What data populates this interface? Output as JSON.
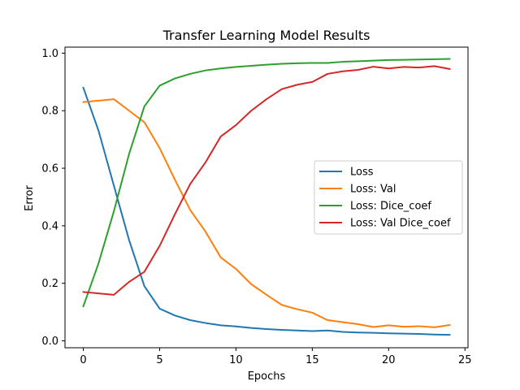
{
  "chart_data": {
    "type": "line",
    "title": "Transfer Learning Model Results",
    "xlabel": "Epochs",
    "ylabel": "Error",
    "xlim": [
      -1.2,
      25.2
    ],
    "ylim": [
      -0.024,
      1.021
    ],
    "xticks": [
      0,
      5,
      10,
      15,
      20,
      25
    ],
    "yticks": [
      0.0,
      0.2,
      0.4,
      0.6,
      0.8,
      1.0
    ],
    "xtick_labels": [
      "0",
      "5",
      "10",
      "15",
      "20",
      "25"
    ],
    "ytick_labels": [
      "0.0",
      "0.2",
      "0.4",
      "0.6",
      "0.8",
      "1.0"
    ],
    "grid": false,
    "legend_position": "center-right",
    "x": [
      0,
      1,
      2,
      3,
      4,
      5,
      6,
      7,
      8,
      9,
      10,
      11,
      12,
      13,
      14,
      15,
      16,
      17,
      18,
      19,
      20,
      21,
      22,
      23,
      24
    ],
    "series": [
      {
        "name": "Loss",
        "color": "#1f77b4",
        "values": [
          0.88,
          0.73,
          0.54,
          0.35,
          0.19,
          0.112,
          0.088,
          0.072,
          0.062,
          0.054,
          0.05,
          0.045,
          0.041,
          0.038,
          0.036,
          0.034,
          0.036,
          0.031,
          0.029,
          0.028,
          0.026,
          0.025,
          0.024,
          0.022,
          0.021
        ]
      },
      {
        "name": "Loss: Val",
        "color": "#ff7f0e",
        "values": [
          0.83,
          0.835,
          0.84,
          0.8,
          0.76,
          0.67,
          0.56,
          0.455,
          0.38,
          0.29,
          0.25,
          0.197,
          0.16,
          0.125,
          0.11,
          0.098,
          0.072,
          0.065,
          0.058,
          0.048,
          0.054,
          0.049,
          0.051,
          0.047,
          0.055
        ]
      },
      {
        "name": "Loss: Dice_coef",
        "color": "#2ca02c",
        "values": [
          0.12,
          0.27,
          0.45,
          0.65,
          0.815,
          0.887,
          0.912,
          0.928,
          0.94,
          0.947,
          0.952,
          0.956,
          0.96,
          0.963,
          0.965,
          0.966,
          0.966,
          0.97,
          0.972,
          0.974,
          0.976,
          0.977,
          0.978,
          0.979,
          0.98
        ]
      },
      {
        "name": "Loss: Val Dice_coef",
        "color": "#d62728",
        "values": [
          0.17,
          0.165,
          0.16,
          0.205,
          0.24,
          0.33,
          0.44,
          0.545,
          0.62,
          0.71,
          0.75,
          0.8,
          0.84,
          0.875,
          0.89,
          0.9,
          0.928,
          0.937,
          0.942,
          0.953,
          0.947,
          0.952,
          0.95,
          0.955,
          0.945
        ]
      }
    ]
  }
}
